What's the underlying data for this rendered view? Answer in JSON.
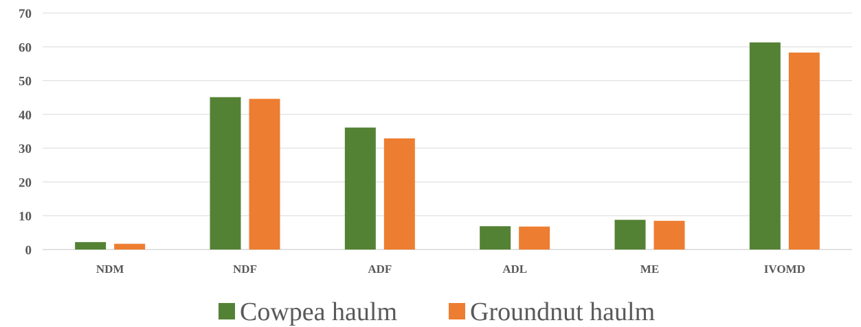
{
  "chart_data": {
    "type": "bar",
    "categories": [
      "NDM",
      "NDF",
      "ADF",
      "ADL",
      "ME",
      "IVOMD"
    ],
    "series": [
      {
        "name": "Cowpea haulm",
        "color": "#548235",
        "values": [
          2.2,
          45.1,
          36.1,
          6.9,
          8.8,
          61.3
        ]
      },
      {
        "name": "Groundnut haulm",
        "color": "#ED7D31",
        "values": [
          1.7,
          44.6,
          32.9,
          6.8,
          8.5,
          58.3
        ]
      }
    ],
    "y_ticks": [
      "0",
      "10",
      "20",
      "30",
      "40",
      "50",
      "60",
      "70"
    ],
    "ylim": [
      0,
      70
    ],
    "grid": true,
    "gridline_color": "#d9d9d9",
    "legend_position": "bottom",
    "title": "",
    "xlabel": "",
    "ylabel": ""
  }
}
